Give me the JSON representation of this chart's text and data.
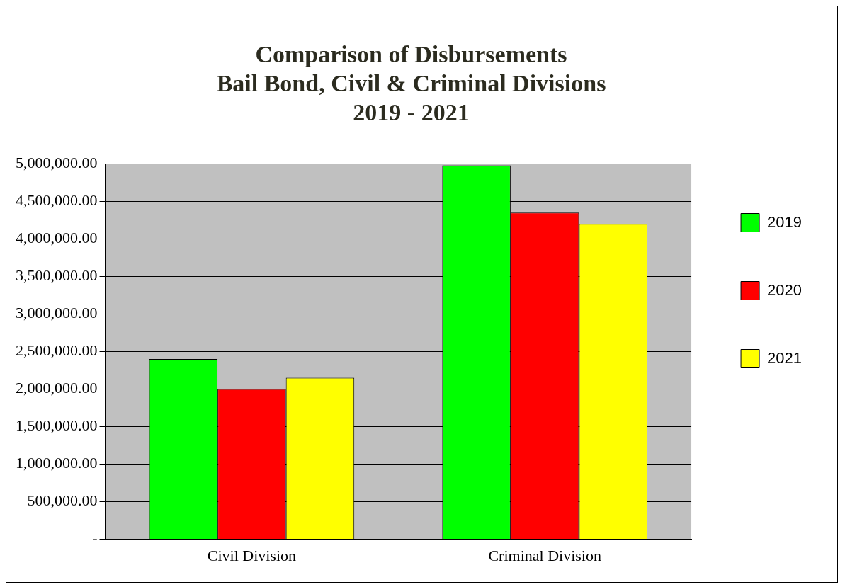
{
  "chart_data": {
    "type": "bar",
    "title": "Comparison of Disbursements\nBail Bond, Civil & Criminal Divisions\n2019 - 2021",
    "categories": [
      "Civil Division",
      "Criminal Division"
    ],
    "series": [
      {
        "name": "2019",
        "color": "#00ff00",
        "values": [
          2400000,
          4980000
        ]
      },
      {
        "name": "2020",
        "color": "#ff0000",
        "values": [
          2000000,
          4350000
        ]
      },
      {
        "name": "2021",
        "color": "#ffff00",
        "values": [
          2150000,
          4200000
        ]
      }
    ],
    "ylim": [
      0,
      5000000
    ],
    "yticks": [
      {
        "value": 0,
        "label": "-"
      },
      {
        "value": 500000,
        "label": "500,000.00"
      },
      {
        "value": 1000000,
        "label": "1,000,000.00"
      },
      {
        "value": 1500000,
        "label": "1,500,000.00"
      },
      {
        "value": 2000000,
        "label": "2,000,000.00"
      },
      {
        "value": 2500000,
        "label": "2,500,000.00"
      },
      {
        "value": 3000000,
        "label": "3,000,000.00"
      },
      {
        "value": 3500000,
        "label": "3,500,000.00"
      },
      {
        "value": 4000000,
        "label": "4,000,000.00"
      },
      {
        "value": 4500000,
        "label": "4,500,000.00"
      },
      {
        "value": 5000000,
        "label": "5,000,000.00"
      }
    ],
    "grid": "y",
    "legend": "right"
  }
}
